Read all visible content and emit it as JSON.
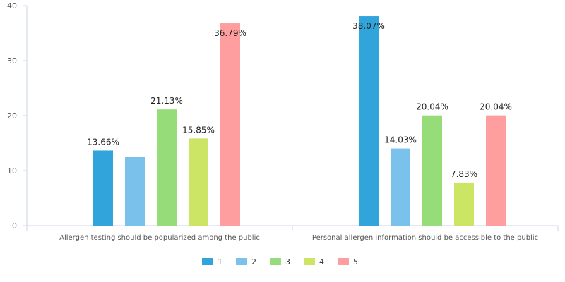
{
  "chart_data": {
    "type": "bar",
    "categories": [
      "Allergen testing should be popularized among the public",
      "Personal allergen information should be accessible to the public"
    ],
    "series": [
      {
        "name": "1",
        "values": [
          13.66,
          38.07
        ],
        "labels": [
          "13.66%",
          "38.07%"
        ],
        "color": "#32a4dc"
      },
      {
        "name": "2",
        "values": [
          12.5,
          14.03
        ],
        "labels": [
          "",
          "14.03%"
        ],
        "color": "#7ac1ec"
      },
      {
        "name": "3",
        "values": [
          21.13,
          20.04
        ],
        "labels": [
          "21.13%",
          "20.04%"
        ],
        "color": "#96dc78"
      },
      {
        "name": "4",
        "values": [
          15.85,
          7.83
        ],
        "labels": [
          "15.85%",
          "7.83%"
        ],
        "color": "#cde564"
      },
      {
        "name": "5",
        "values": [
          36.79,
          20.04
        ],
        "labels": [
          "36.79%",
          "20.04%"
        ],
        "color": "#ff9e9e"
      }
    ],
    "ylim": [
      0,
      40
    ],
    "yticks": [
      "0",
      "10",
      "20",
      "30",
      "40"
    ],
    "grid": false,
    "legend": "bottom-center"
  }
}
